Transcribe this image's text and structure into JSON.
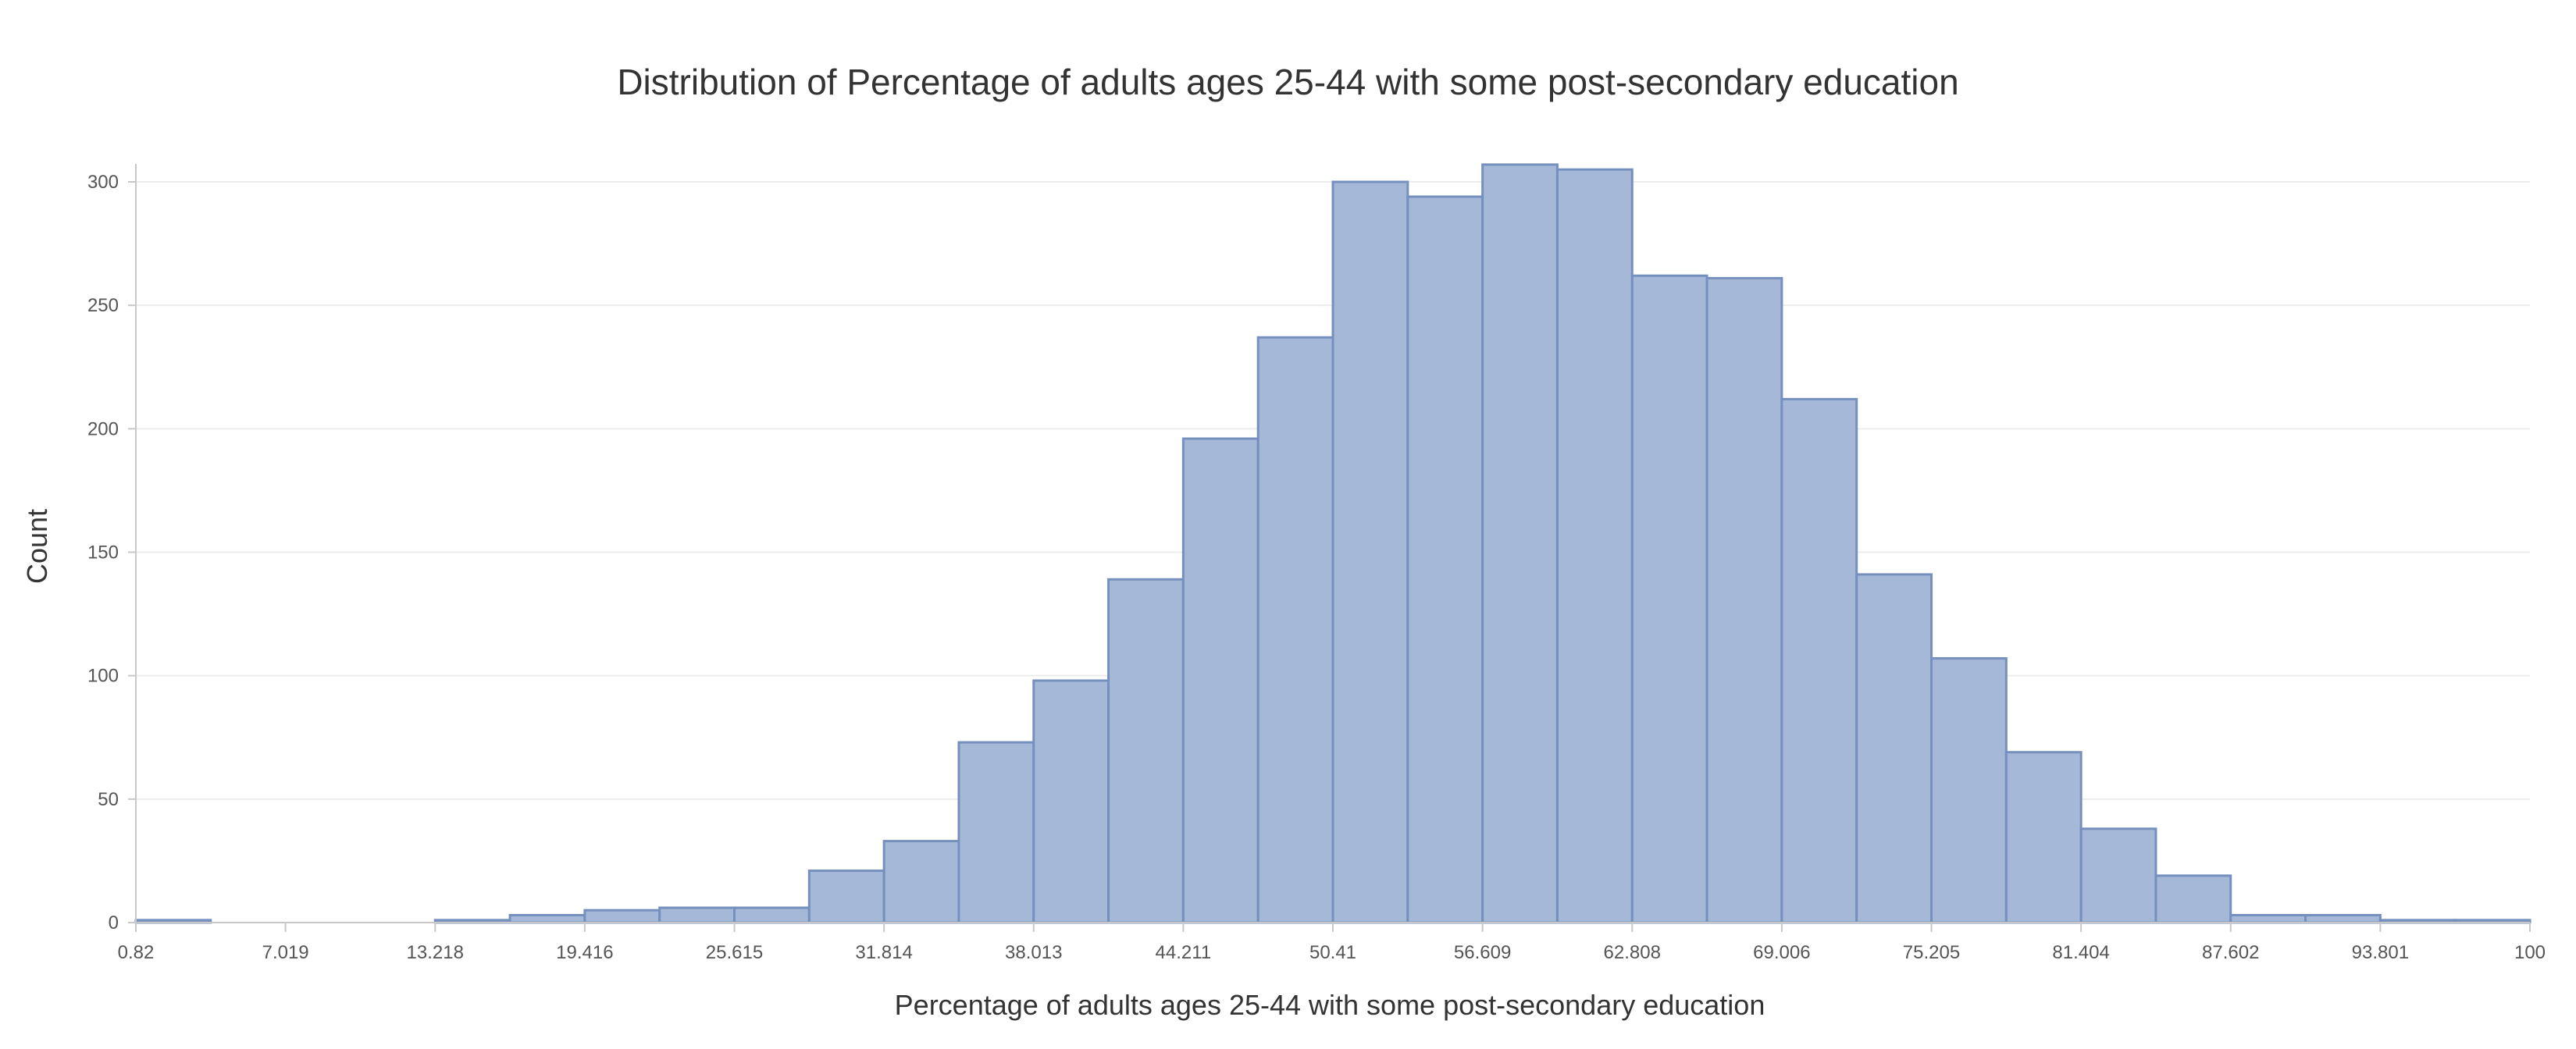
{
  "chart_data": {
    "type": "bar",
    "title": "Distribution of Percentage of adults ages 25-44 with some post-secondary education",
    "xlabel": "Percentage of adults ages 25-44 with some post-secondary education",
    "ylabel": "Count",
    "xlim": [
      0.82,
      100
    ],
    "ylim": [
      0,
      300
    ],
    "y_ticks": [
      0,
      50,
      100,
      150,
      200,
      250,
      300
    ],
    "x_ticks": [
      "0.82",
      "7.019",
      "13.218",
      "19.416",
      "25.615",
      "31.814",
      "38.013",
      "44.211",
      "50.41",
      "56.609",
      "62.808",
      "69.006",
      "75.205",
      "81.404",
      "87.602",
      "93.801",
      "100"
    ],
    "bin_edges": [
      0.82,
      3.919,
      7.019,
      10.118,
      13.218,
      16.317,
      19.416,
      22.516,
      25.615,
      28.715,
      31.814,
      34.913,
      38.013,
      41.112,
      44.211,
      47.311,
      50.41,
      53.51,
      56.609,
      59.708,
      62.808,
      65.907,
      69.006,
      72.106,
      75.205,
      78.305,
      81.404,
      84.503,
      87.602,
      90.702,
      93.801,
      96.901,
      100
    ],
    "counts": [
      1,
      0,
      0,
      0,
      1,
      3,
      5,
      6,
      6,
      21,
      33,
      73,
      98,
      139,
      196,
      237,
      300,
      294,
      307,
      305,
      262,
      261,
      212,
      141,
      107,
      69,
      38,
      19,
      3,
      3,
      1,
      1
    ],
    "grid": true,
    "colors": {
      "bar_fill": "#a5b8d8",
      "bar_stroke": "#7690bd",
      "grid": "#ececec",
      "axis": "#c8c8c8"
    }
  }
}
